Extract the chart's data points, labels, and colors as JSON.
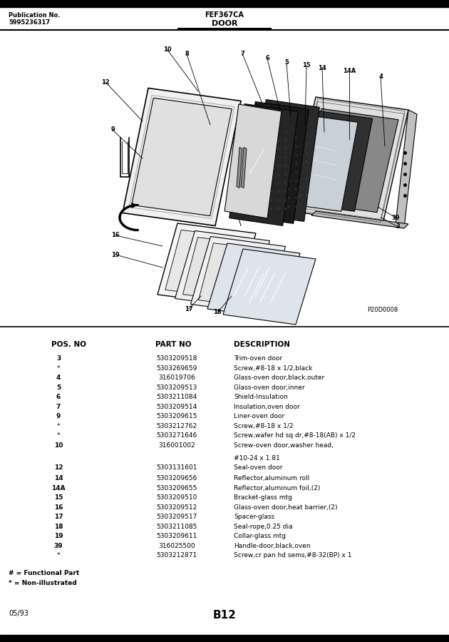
{
  "pub_no": "Publication No.",
  "pub_num": "5995236317",
  "model": "FEF367CA",
  "section": "DOOR",
  "diagram_id": "P20D0008",
  "bg_color": "#ffffff",
  "table_headers": [
    "POS. NO",
    "PART NO",
    "DESCRIPTION"
  ],
  "table_rows": [
    [
      "3",
      "5303209518",
      "Trim-oven door"
    ],
    [
      "*",
      "5303269659",
      "Screw,#8-18 x 1/2,black"
    ],
    [
      "4",
      "316019706",
      "Glass-oven door,black,outer"
    ],
    [
      "5",
      "5303209513",
      "Glass-oven door,inner"
    ],
    [
      "6",
      "5303211084",
      "Shield-Insulation"
    ],
    [
      "7",
      "5303209514",
      "Insulation,oven door"
    ],
    [
      "9",
      "5303209615",
      "Liner-oven door"
    ],
    [
      "*",
      "5303212762",
      "Screw,#8-18 x 1/2"
    ],
    [
      "*",
      "5303271646",
      "Screw,wafer hd sq dr,#8-18(AB) x 1/2"
    ],
    [
      "10",
      "316001002",
      "Screw-oven door,washer head,"
    ],
    [
      "",
      "",
      "#10-24 x 1.81"
    ],
    [
      "12",
      "5303131601",
      "Seal-oven door"
    ],
    [
      "14",
      "5303209656",
      "Reflector,aluminum roll"
    ],
    [
      "14A",
      "5303209655",
      "Reflector,aluminum foil,(2)"
    ],
    [
      "15",
      "5303209510",
      "Bracket-glass mtg"
    ],
    [
      "16",
      "5303209512",
      "Glass-oven door,heat barrier,(2)"
    ],
    [
      "17",
      "5303209517",
      "Spacer-glass"
    ],
    [
      "18",
      "5303211085",
      "Seal-rope,0.25 dia"
    ],
    [
      "19",
      "5303209611",
      "Collar-glass mtg"
    ],
    [
      "39",
      "316025500",
      "Handle-door,black,oven"
    ],
    [
      "*",
      "5303212871",
      "Screw,cr pan hd sems,#8-32(BP) x 1"
    ]
  ],
  "footnote1": "# = Functional Part",
  "footnote2": "* = Non-illustrated",
  "footer_left": "05/93",
  "footer_center": "B12"
}
